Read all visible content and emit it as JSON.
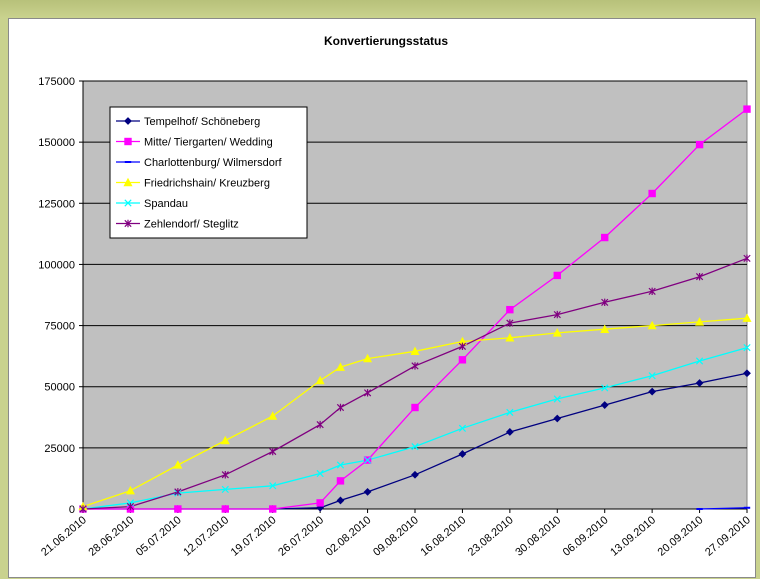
{
  "header": {
    "partial_title": ""
  },
  "chart_data": {
    "type": "line",
    "title": "Konvertierungsstatus",
    "xlabel": "",
    "ylabel": "",
    "ylim": [
      0,
      175000
    ],
    "yticks": [
      0,
      25000,
      50000,
      75000,
      100000,
      125000,
      150000,
      175000
    ],
    "ytick_labels": [
      "0",
      "25000",
      "50000",
      "75000",
      "100000",
      "125000",
      "150000",
      "175000"
    ],
    "x_ticks": [
      "21.06.2010",
      "28.06.2010",
      "05.07.2010",
      "12.07.2010",
      "19.07.2010",
      "26.07.2010",
      "02.08.2010",
      "09.08.2010",
      "16.08.2010",
      "23.08.2010",
      "30.08.2010",
      "06.09.2010",
      "13.09.2010",
      "20.09.2010",
      "27.09.2010"
    ],
    "x_start": "21.06.2010",
    "x_end": "27.09.2010",
    "grid": "horizontal",
    "plot_background": "#c0c0c0",
    "legend_position": "top-left",
    "series": [
      {
        "name": "Tempelhof/ Schöneberg",
        "color": "#000080",
        "marker": "diamond",
        "points": [
          [
            "21.06.2010",
            0
          ],
          [
            "28.06.2010",
            0
          ],
          [
            "05.07.2010",
            0
          ],
          [
            "12.07.2010",
            0
          ],
          [
            "19.07.2010",
            0
          ],
          [
            "26.07.2010",
            500
          ],
          [
            "29.07.2010",
            3500
          ],
          [
            "02.08.2010",
            7000
          ],
          [
            "09.08.2010",
            14000
          ],
          [
            "16.08.2010",
            22500
          ],
          [
            "23.08.2010",
            31500
          ],
          [
            "30.08.2010",
            37000
          ],
          [
            "06.09.2010",
            42500
          ],
          [
            "13.09.2010",
            48000
          ],
          [
            "20.09.2010",
            51500
          ],
          [
            "27.09.2010",
            55500
          ]
        ]
      },
      {
        "name": "Mitte/ Tiergarten/ Wedding",
        "color": "#ff00ff",
        "marker": "square",
        "points": [
          [
            "21.06.2010",
            0
          ],
          [
            "28.06.2010",
            0
          ],
          [
            "05.07.2010",
            0
          ],
          [
            "12.07.2010",
            0
          ],
          [
            "19.07.2010",
            0
          ],
          [
            "26.07.2010",
            2500
          ],
          [
            "29.07.2010",
            11500
          ],
          [
            "02.08.2010",
            20000
          ],
          [
            "09.08.2010",
            41500
          ],
          [
            "16.08.2010",
            61000
          ],
          [
            "23.08.2010",
            81500
          ],
          [
            "30.08.2010",
            95500
          ],
          [
            "06.09.2010",
            111000
          ],
          [
            "13.09.2010",
            129000
          ],
          [
            "20.09.2010",
            149000
          ],
          [
            "27.09.2010",
            163500
          ]
        ]
      },
      {
        "name": "Charlottenburg/ Wilmersdorf",
        "color": "#0000ff",
        "marker": "dash",
        "points": [
          [
            "20.09.2010",
            0
          ],
          [
            "27.09.2010",
            500
          ]
        ]
      },
      {
        "name": "Friedrichshain/ Kreuzberg",
        "color": "#ffff00",
        "marker": "triangle",
        "points": [
          [
            "21.06.2010",
            1000
          ],
          [
            "28.06.2010",
            7500
          ],
          [
            "05.07.2010",
            18000
          ],
          [
            "12.07.2010",
            28000
          ],
          [
            "19.07.2010",
            38000
          ],
          [
            "26.07.2010",
            52500
          ],
          [
            "29.07.2010",
            58000
          ],
          [
            "02.08.2010",
            61500
          ],
          [
            "09.08.2010",
            64500
          ],
          [
            "16.08.2010",
            68500
          ],
          [
            "23.08.2010",
            70000
          ],
          [
            "30.08.2010",
            72000
          ],
          [
            "06.09.2010",
            73500
          ],
          [
            "13.09.2010",
            75000
          ],
          [
            "20.09.2010",
            76500
          ],
          [
            "27.09.2010",
            78000
          ]
        ]
      },
      {
        "name": "Spandau",
        "color": "#00ffff",
        "marker": "x",
        "points": [
          [
            "21.06.2010",
            0
          ],
          [
            "28.06.2010",
            2500
          ],
          [
            "05.07.2010",
            6500
          ],
          [
            "12.07.2010",
            8000
          ],
          [
            "19.07.2010",
            9500
          ],
          [
            "26.07.2010",
            14500
          ],
          [
            "29.07.2010",
            18000
          ],
          [
            "02.08.2010",
            20000
          ],
          [
            "09.08.2010",
            25500
          ],
          [
            "16.08.2010",
            33000
          ],
          [
            "23.08.2010",
            39500
          ],
          [
            "30.08.2010",
            45000
          ],
          [
            "06.09.2010",
            49500
          ],
          [
            "13.09.2010",
            54500
          ],
          [
            "20.09.2010",
            60500
          ],
          [
            "27.09.2010",
            66000
          ]
        ]
      },
      {
        "name": "Zehlendorf/ Steglitz",
        "color": "#800080",
        "marker": "star",
        "points": [
          [
            "21.06.2010",
            0
          ],
          [
            "28.06.2010",
            1000
          ],
          [
            "05.07.2010",
            7000
          ],
          [
            "12.07.2010",
            14000
          ],
          [
            "19.07.2010",
            23500
          ],
          [
            "26.07.2010",
            34500
          ],
          [
            "29.07.2010",
            41500
          ],
          [
            "02.08.2010",
            47500
          ],
          [
            "09.08.2010",
            58500
          ],
          [
            "16.08.2010",
            66500
          ],
          [
            "23.08.2010",
            76000
          ],
          [
            "30.08.2010",
            79500
          ],
          [
            "06.09.2010",
            84500
          ],
          [
            "13.09.2010",
            89000
          ],
          [
            "20.09.2010",
            95000
          ],
          [
            "27.09.2010",
            102500
          ]
        ]
      }
    ]
  }
}
